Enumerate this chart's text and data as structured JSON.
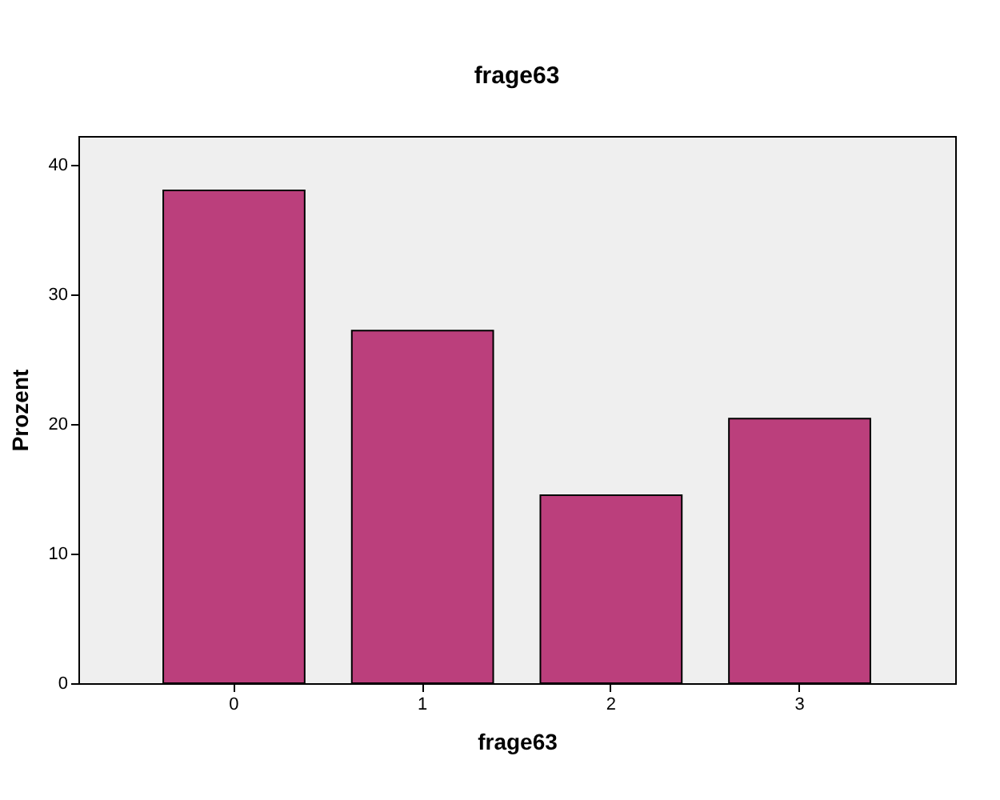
{
  "chart_data": {
    "type": "bar",
    "title": "frage63",
    "xlabel": "frage63",
    "ylabel": "Prozent",
    "categories": [
      "0",
      "1",
      "2",
      "3"
    ],
    "values": [
      38.0,
      27.2,
      14.5,
      20.4
    ],
    "color": "#bb3f7c",
    "ylim": [
      0,
      42.2
    ],
    "yticks": [
      0,
      10,
      20,
      30,
      40
    ],
    "grid": false
  }
}
